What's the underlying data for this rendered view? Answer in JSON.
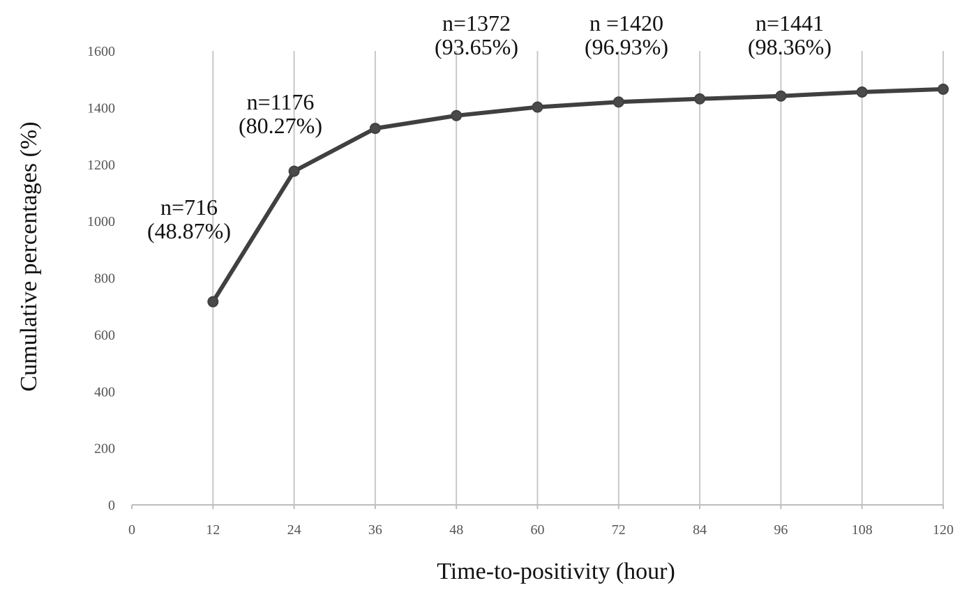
{
  "chart_data": {
    "type": "line",
    "xlabel": "Time-to-positivity (hour)",
    "ylabel": "Cumulative percentages (%)",
    "xlim": [
      0,
      120
    ],
    "ylim": [
      0,
      1600
    ],
    "x_ticks": [
      0,
      12,
      24,
      36,
      48,
      60,
      72,
      84,
      96,
      108,
      120
    ],
    "y_ticks": [
      0,
      200,
      400,
      600,
      800,
      1000,
      1200,
      1400,
      1600
    ],
    "grid": "vertical",
    "legend": "none",
    "series": [
      {
        "color": "#404040",
        "x": [
          12,
          24,
          36,
          48,
          60,
          72,
          84,
          96,
          108,
          120
        ],
        "y": [
          716,
          1176,
          1327,
          1372,
          1402,
          1420,
          1431,
          1441,
          1455,
          1465
        ]
      }
    ],
    "annotations": [
      {
        "x": 12,
        "lines": [
          "n=716",
          "(48.87%)"
        ]
      },
      {
        "x": 24,
        "lines": [
          "n=1176",
          "(80.27%)"
        ]
      },
      {
        "x": 48,
        "lines": [
          "n=1372",
          "(93.65%)"
        ]
      },
      {
        "x": 72,
        "lines": [
          "n =1420",
          "(96.93%)"
        ]
      },
      {
        "x": 96,
        "lines": [
          "n=1441",
          "(98.36%)"
        ]
      }
    ]
  }
}
